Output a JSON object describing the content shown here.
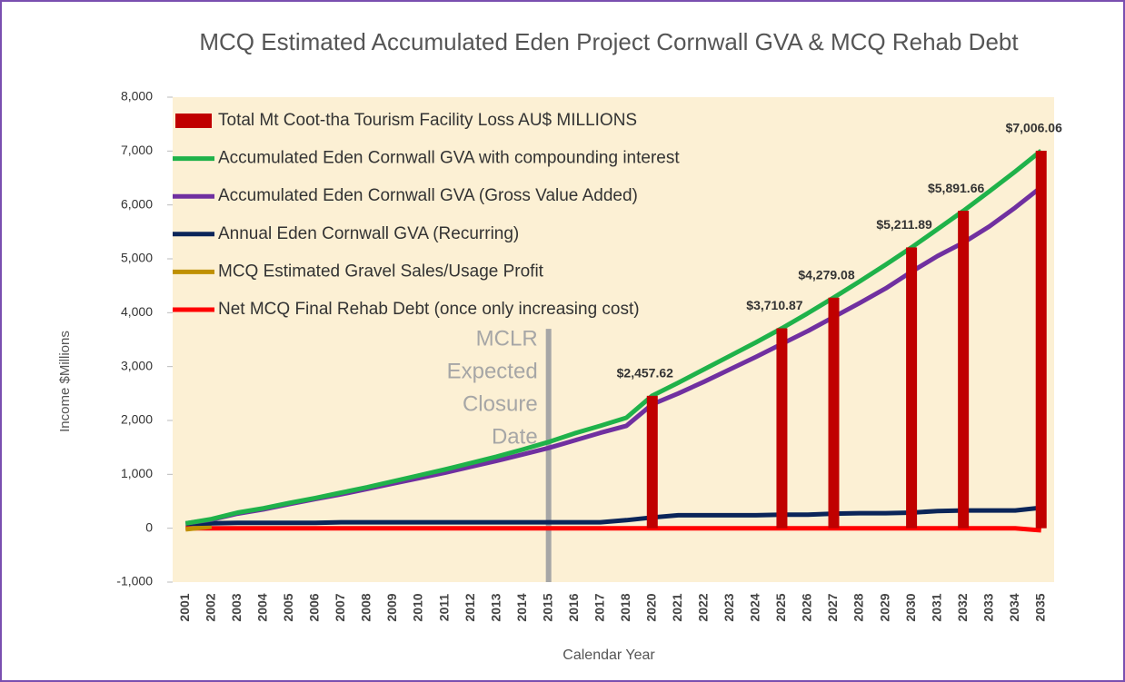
{
  "chart_data": {
    "type": "bar-line",
    "title": "MCQ Estimated Accumulated Eden Project Cornwall GVA & MCQ Rehab Debt",
    "y_label": "Income $Millions",
    "x_label": "Calendar Year",
    "categories": [
      "2001",
      "2002",
      "2003",
      "2004",
      "2005",
      "2006",
      "2007",
      "2008",
      "2009",
      "2010",
      "2011",
      "2012",
      "2013",
      "2014",
      "2015",
      "2016",
      "2017",
      "2018",
      "2020",
      "2021",
      "2022",
      "2023",
      "2024",
      "2025",
      "2026",
      "2027",
      "2028",
      "2029",
      "2030",
      "2031",
      "2032",
      "2033",
      "2034",
      "2035"
    ],
    "ylim": [
      -1000,
      8000
    ],
    "yticks": [
      {
        "value": -1000,
        "label": "-1,000"
      },
      0,
      {
        "value": 1000,
        "label": "1,000"
      },
      {
        "value": 2000,
        "label": "2,000"
      },
      {
        "value": 3000,
        "label": "3,000"
      },
      {
        "value": 4000,
        "label": "4,000"
      },
      {
        "value": 5000,
        "label": "5,000"
      },
      {
        "value": 6000,
        "label": "6,000"
      },
      {
        "value": 7000,
        "label": "7,000"
      },
      {
        "value": 8000,
        "label": "8,000"
      }
    ],
    "legend": "top-left",
    "series": [
      {
        "name": "Total Mt Coot-tha Tourism Facility Loss AU$ MILLIONS",
        "type": "bar",
        "color": "#c00000",
        "values": [
          null,
          null,
          null,
          null,
          null,
          null,
          null,
          null,
          null,
          null,
          null,
          null,
          null,
          null,
          null,
          null,
          null,
          null,
          2457.62,
          null,
          null,
          null,
          null,
          3710.87,
          null,
          4279.08,
          null,
          null,
          5211.89,
          null,
          5891.66,
          null,
          null,
          7006.06
        ],
        "value_labels": [
          null,
          null,
          null,
          null,
          null,
          null,
          null,
          null,
          null,
          null,
          null,
          null,
          null,
          null,
          null,
          null,
          null,
          null,
          "$2,457.62",
          null,
          null,
          null,
          null,
          "$3,710.87",
          null,
          "$4,279.08",
          null,
          null,
          "$5,211.89",
          null,
          "$5,891.66",
          null,
          null,
          "$7,006.06"
        ]
      },
      {
        "name": "Accumulated Eden Cornwall GVA with compounding interest",
        "type": "line",
        "color": "#1fb24a",
        "values": [
          90,
          170,
          290,
          370,
          470,
          560,
          660,
          760,
          870,
          980,
          1090,
          1210,
          1330,
          1460,
          1600,
          1760,
          1900,
          2050,
          2460,
          2700,
          2950,
          3200,
          3450,
          3710,
          3990,
          4280,
          4580,
          4890,
          5210,
          5550,
          5890,
          6250,
          6620,
          7006
        ]
      },
      {
        "name": "Accumulated Eden Cornwall GVA (Gross Value Added)",
        "type": "line",
        "color": "#7030a0",
        "values": [
          90,
          160,
          270,
          350,
          450,
          540,
          630,
          730,
          830,
          930,
          1030,
          1140,
          1250,
          1370,
          1490,
          1630,
          1770,
          1900,
          2300,
          2500,
          2720,
          2950,
          3180,
          3420,
          3660,
          3920,
          4180,
          4450,
          4760,
          5050,
          5300,
          5600,
          5950,
          6330
        ]
      },
      {
        "name": "Annual Eden Cornwall GVA (Recurring)",
        "type": "line",
        "color": "#0b2559",
        "values": [
          80,
          90,
          100,
          100,
          100,
          100,
          110,
          110,
          110,
          110,
          110,
          110,
          110,
          110,
          110,
          110,
          110,
          150,
          200,
          240,
          240,
          240,
          240,
          250,
          250,
          270,
          280,
          280,
          290,
          320,
          330,
          330,
          330,
          380
        ]
      },
      {
        "name": "MCQ Estimated Gravel Sales/Usage Profit",
        "type": "line",
        "color": "#bf9000",
        "values": [
          -20,
          30,
          null,
          null,
          null,
          null,
          null,
          null,
          null,
          null,
          null,
          null,
          null,
          null,
          null,
          null,
          null,
          null,
          null,
          null,
          null,
          null,
          null,
          null,
          null,
          null,
          null,
          null,
          null,
          null,
          null,
          null,
          null,
          null
        ]
      },
      {
        "name": "Net MCQ Final Rehab Debt (once only increasing cost)",
        "type": "line",
        "color": "#ff0000",
        "values": [
          0,
          0,
          0,
          0,
          0,
          0,
          0,
          0,
          0,
          0,
          0,
          0,
          0,
          0,
          0,
          0,
          0,
          0,
          0,
          0,
          0,
          0,
          0,
          0,
          0,
          0,
          0,
          0,
          0,
          0,
          0,
          0,
          0,
          -40
        ]
      }
    ],
    "annotation": {
      "text": [
        "MCLR",
        "Expected",
        "Closure",
        "Date"
      ],
      "category": "2015"
    }
  }
}
